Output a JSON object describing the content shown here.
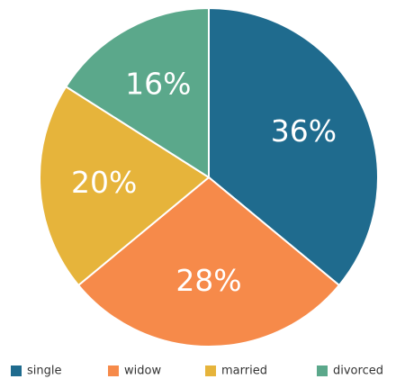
{
  "chart_data": {
    "type": "pie",
    "categories": [
      "single",
      "widow",
      "married",
      "divorced"
    ],
    "values": [
      36,
      28,
      20,
      16
    ],
    "value_labels": [
      "36%",
      "28%",
      "20%",
      "16%"
    ],
    "colors": [
      "#1f6b8e",
      "#f68a4a",
      "#e6b43b",
      "#5ba88b"
    ],
    "legend": "bottom"
  }
}
